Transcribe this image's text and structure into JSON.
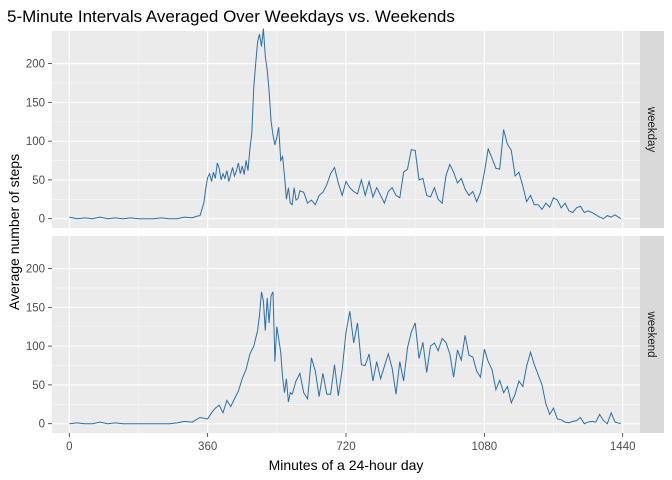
{
  "chart_data": {
    "type": "line",
    "title": "5-Minute Intervals Averaged Over Weekdays vs. Weekends",
    "xlabel": "Minutes of a 24-hour day",
    "ylabel": "Average number of steps",
    "xlim": [
      -45,
      1485
    ],
    "ylim": [
      -12,
      242
    ],
    "x_ticks": [
      0,
      360,
      720,
      1080,
      1440
    ],
    "x_tick_labels": [
      "0",
      "360",
      "720",
      "1080",
      "1440"
    ],
    "y_ticks": [
      0,
      50,
      100,
      150,
      200
    ],
    "y_tick_labels": [
      "0",
      "50",
      "100",
      "150",
      "200"
    ],
    "grid": true,
    "line_color": "#2C6FA8",
    "panel_background": "#EBEBEB",
    "strip_background": "#D9D9D9",
    "facets": [
      {
        "label": "weekday",
        "x": [
          0,
          20,
          40,
          60,
          80,
          100,
          120,
          140,
          160,
          180,
          200,
          220,
          240,
          260,
          280,
          300,
          320,
          330,
          340,
          345,
          350,
          355,
          360,
          365,
          370,
          375,
          380,
          385,
          390,
          395,
          400,
          405,
          410,
          415,
          420,
          425,
          430,
          435,
          440,
          445,
          450,
          455,
          460,
          465,
          470,
          475,
          480,
          485,
          490,
          495,
          500,
          505,
          510,
          515,
          520,
          525,
          530,
          535,
          540,
          545,
          550,
          555,
          560,
          565,
          570,
          575,
          580,
          585,
          590,
          595,
          600,
          610,
          620,
          630,
          640,
          650,
          660,
          670,
          680,
          690,
          700,
          710,
          720,
          730,
          740,
          750,
          760,
          770,
          780,
          790,
          800,
          810,
          820,
          830,
          840,
          850,
          860,
          870,
          880,
          890,
          900,
          910,
          920,
          930,
          940,
          950,
          960,
          970,
          980,
          990,
          1000,
          1010,
          1020,
          1030,
          1040,
          1050,
          1060,
          1070,
          1080,
          1090,
          1100,
          1110,
          1120,
          1130,
          1140,
          1150,
          1160,
          1170,
          1180,
          1190,
          1200,
          1210,
          1220,
          1230,
          1240,
          1250,
          1260,
          1270,
          1280,
          1290,
          1300,
          1310,
          1320,
          1330,
          1340,
          1350,
          1360,
          1370,
          1380,
          1390,
          1400,
          1410,
          1420,
          1435
        ],
        "y": [
          2,
          0,
          1,
          0,
          2,
          0,
          1,
          0,
          1,
          0,
          0,
          0,
          1,
          0,
          0,
          2,
          1,
          3,
          4,
          12,
          20,
          38,
          53,
          58,
          48,
          60,
          52,
          72,
          65,
          50,
          58,
          52,
          62,
          48,
          57,
          66,
          55,
          62,
          72,
          58,
          68,
          57,
          75,
          62,
          90,
          110,
          170,
          200,
          228,
          238,
          222,
          245,
          209,
          192,
          164,
          125,
          108,
          95,
          105,
          118,
          75,
          80,
          55,
          25,
          40,
          20,
          18,
          40,
          24,
          26,
          36,
          34,
          20,
          24,
          18,
          30,
          34,
          44,
          58,
          66,
          46,
          30,
          48,
          40,
          35,
          32,
          50,
          30,
          48,
          28,
          40,
          30,
          20,
          35,
          40,
          30,
          27,
          60,
          64,
          89,
          88,
          50,
          52,
          30,
          28,
          40,
          25,
          20,
          55,
          70,
          60,
          46,
          52,
          38,
          30,
          35,
          22,
          34,
          60,
          90,
          78,
          65,
          64,
          115,
          96,
          88,
          55,
          60,
          42,
          22,
          30,
          18,
          18,
          12,
          20,
          15,
          27,
          24,
          14,
          20,
          10,
          8,
          14,
          16,
          8,
          10,
          8,
          5,
          2,
          0,
          4,
          2,
          5,
          0
        ]
      },
      {
        "label": "weekend",
        "x": [
          0,
          20,
          40,
          60,
          80,
          100,
          120,
          140,
          160,
          180,
          200,
          220,
          240,
          260,
          280,
          300,
          320,
          340,
          360,
          370,
          380,
          390,
          400,
          410,
          420,
          430,
          440,
          450,
          460,
          470,
          480,
          490,
          495,
          500,
          505,
          510,
          515,
          520,
          525,
          530,
          535,
          540,
          545,
          550,
          555,
          560,
          565,
          570,
          575,
          580,
          590,
          600,
          610,
          620,
          630,
          640,
          650,
          660,
          670,
          680,
          690,
          700,
          710,
          720,
          730,
          740,
          750,
          760,
          770,
          780,
          790,
          800,
          810,
          820,
          830,
          840,
          850,
          860,
          870,
          880,
          890,
          900,
          910,
          920,
          930,
          940,
          950,
          960,
          970,
          980,
          990,
          1000,
          1010,
          1020,
          1030,
          1040,
          1050,
          1060,
          1070,
          1080,
          1090,
          1100,
          1110,
          1120,
          1130,
          1140,
          1150,
          1160,
          1170,
          1180,
          1190,
          1200,
          1210,
          1220,
          1230,
          1240,
          1250,
          1260,
          1270,
          1280,
          1290,
          1300,
          1310,
          1320,
          1330,
          1340,
          1350,
          1360,
          1370,
          1380,
          1390,
          1400,
          1410,
          1420,
          1435
        ],
        "y": [
          0,
          1,
          0,
          0,
          2,
          0,
          1,
          0,
          0,
          0,
          0,
          0,
          0,
          0,
          1,
          3,
          2,
          8,
          6,
          14,
          20,
          24,
          14,
          30,
          22,
          32,
          42,
          58,
          70,
          90,
          100,
          120,
          140,
          170,
          158,
          120,
          162,
          130,
          165,
          170,
          80,
          125,
          110,
          92,
          60,
          40,
          58,
          28,
          40,
          38,
          55,
          65,
          40,
          32,
          85,
          68,
          35,
          65,
          38,
          38,
          76,
          36,
          70,
          118,
          145,
          104,
          130,
          76,
          75,
          90,
          55,
          80,
          58,
          74,
          90,
          72,
          38,
          80,
          55,
          98,
          118,
          130,
          84,
          105,
          66,
          100,
          104,
          94,
          110,
          105,
          90,
          60,
          95,
          82,
          114,
          88,
          86,
          68,
          60,
          96,
          80,
          70,
          44,
          56,
          40,
          48,
          27,
          38,
          55,
          48,
          74,
          92,
          76,
          63,
          50,
          26,
          12,
          20,
          6,
          5,
          2,
          1,
          3,
          4,
          8,
          0,
          2,
          3,
          2,
          12,
          4,
          0,
          14,
          2,
          0
        ]
      }
    ]
  }
}
